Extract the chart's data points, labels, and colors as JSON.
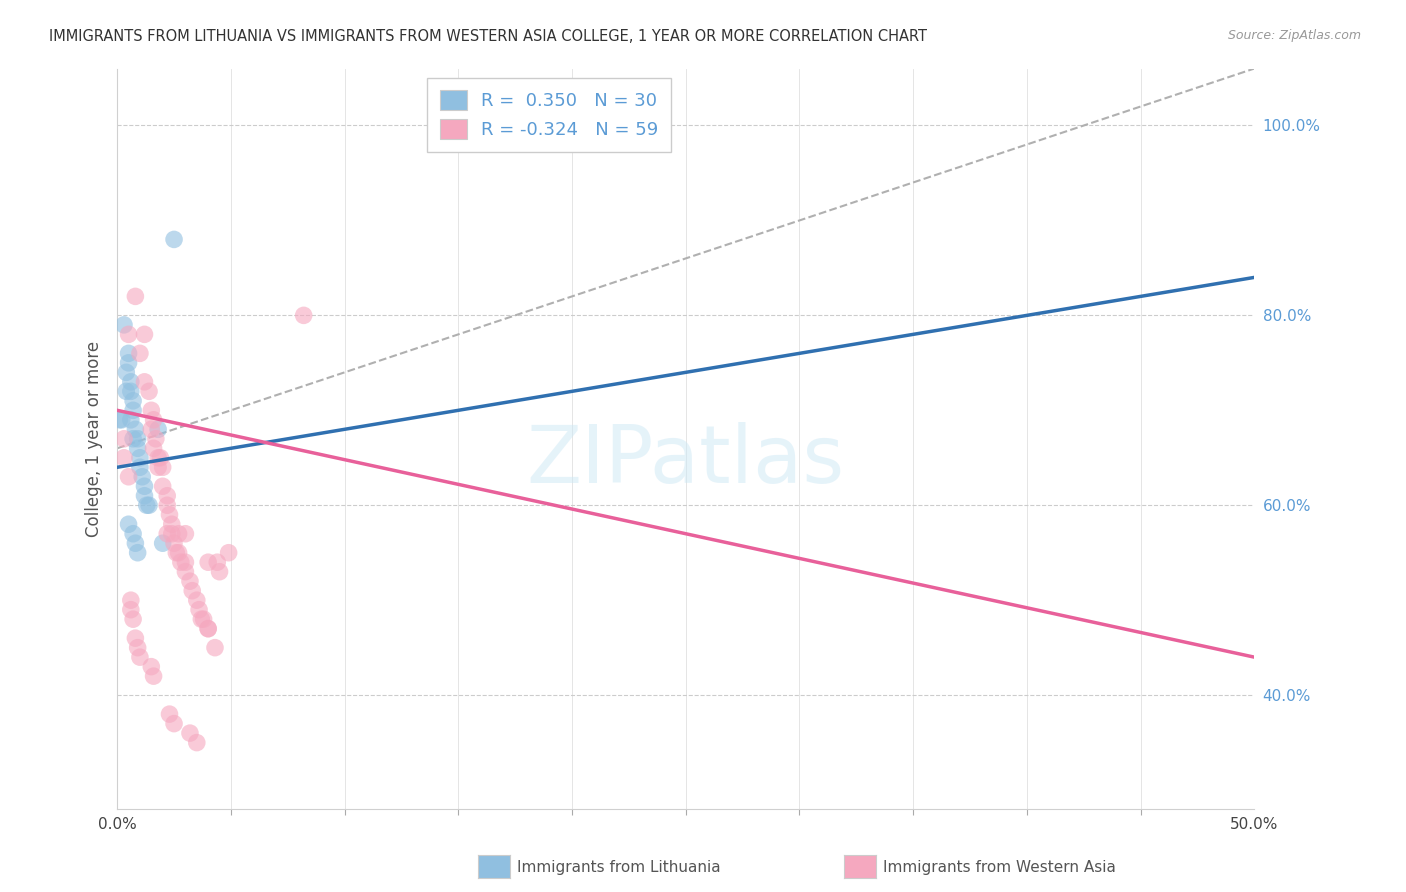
{
  "title": "IMMIGRANTS FROM LITHUANIA VS IMMIGRANTS FROM WESTERN ASIA COLLEGE, 1 YEAR OR MORE CORRELATION CHART",
  "source": "Source: ZipAtlas.com",
  "ylabel": "College, 1 year or more",
  "xlim": [
    0.0,
    0.5
  ],
  "ylim_plot": [
    0.28,
    1.06
  ],
  "xtick_values": [
    0.0,
    0.5
  ],
  "xtick_labels": [
    "0.0%",
    "50.0%"
  ],
  "ytick_values_right": [
    0.4,
    0.6,
    0.8,
    1.0
  ],
  "legend_R_blue": "0.350",
  "legend_N_blue": "30",
  "legend_R_pink": "-0.324",
  "legend_N_pink": "59",
  "legend_label_blue": "Immigrants from Lithuania",
  "legend_label_pink": "Immigrants from Western Asia",
  "watermark": "ZIPatlas",
  "blue_color": "#90bfe0",
  "pink_color": "#f5a8bf",
  "blue_line_color": "#3070b0",
  "pink_line_color": "#e8609a",
  "blue_scatter_x": [
    0.004,
    0.005,
    0.005,
    0.006,
    0.006,
    0.007,
    0.007,
    0.008,
    0.009,
    0.01,
    0.01,
    0.011,
    0.012,
    0.012,
    0.013,
    0.014,
    0.003,
    0.004,
    0.005,
    0.007,
    0.008,
    0.009,
    0.018,
    0.02,
    0.025,
    0.002,
    0.001,
    0.007,
    0.009,
    0.006
  ],
  "blue_scatter_y": [
    0.72,
    0.76,
    0.75,
    0.73,
    0.72,
    0.71,
    0.7,
    0.68,
    0.67,
    0.65,
    0.64,
    0.63,
    0.62,
    0.61,
    0.6,
    0.6,
    0.79,
    0.74,
    0.58,
    0.57,
    0.56,
    0.55,
    0.68,
    0.56,
    0.88,
    0.69,
    0.69,
    0.67,
    0.66,
    0.69
  ],
  "pink_scatter_x": [
    0.005,
    0.008,
    0.01,
    0.012,
    0.012,
    0.014,
    0.015,
    0.015,
    0.016,
    0.016,
    0.017,
    0.018,
    0.018,
    0.019,
    0.02,
    0.02,
    0.022,
    0.022,
    0.023,
    0.024,
    0.024,
    0.025,
    0.026,
    0.027,
    0.028,
    0.03,
    0.03,
    0.032,
    0.033,
    0.035,
    0.036,
    0.037,
    0.038,
    0.04,
    0.04,
    0.043,
    0.045,
    0.003,
    0.003,
    0.005,
    0.006,
    0.006,
    0.007,
    0.008,
    0.009,
    0.01,
    0.015,
    0.016,
    0.023,
    0.025,
    0.027,
    0.032,
    0.035,
    0.04,
    0.044,
    0.082,
    0.03,
    0.049,
    0.022
  ],
  "pink_scatter_y": [
    0.78,
    0.82,
    0.76,
    0.78,
    0.73,
    0.72,
    0.68,
    0.7,
    0.69,
    0.66,
    0.67,
    0.64,
    0.65,
    0.65,
    0.64,
    0.62,
    0.61,
    0.6,
    0.59,
    0.58,
    0.57,
    0.56,
    0.55,
    0.55,
    0.54,
    0.54,
    0.53,
    0.52,
    0.51,
    0.5,
    0.49,
    0.48,
    0.48,
    0.47,
    0.47,
    0.45,
    0.53,
    0.67,
    0.65,
    0.63,
    0.5,
    0.49,
    0.48,
    0.46,
    0.45,
    0.44,
    0.43,
    0.42,
    0.38,
    0.37,
    0.57,
    0.36,
    0.35,
    0.54,
    0.54,
    0.8,
    0.57,
    0.55,
    0.57
  ],
  "blue_trend_x": [
    0.0,
    0.5
  ],
  "blue_trend_y": [
    0.64,
    0.84
  ],
  "pink_trend_x": [
    0.0,
    0.5
  ],
  "pink_trend_y": [
    0.7,
    0.44
  ],
  "dash_line_x": [
    0.0,
    0.5
  ],
  "dash_line_y": [
    0.66,
    1.06
  ],
  "minor_ticks_x": [
    0.05,
    0.1,
    0.15,
    0.2,
    0.25,
    0.3,
    0.35,
    0.4,
    0.45
  ]
}
